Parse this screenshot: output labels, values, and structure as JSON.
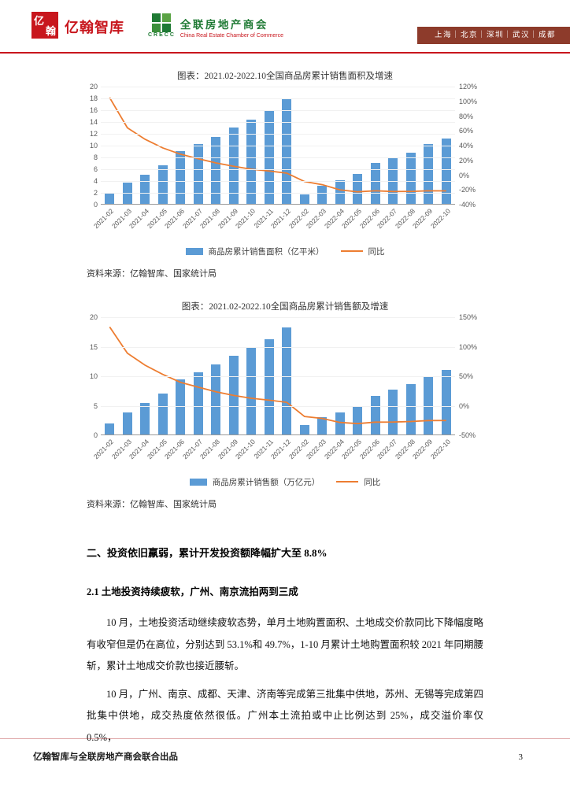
{
  "header": {
    "brand": "亿翰智库",
    "logo_mark_top": "亿",
    "logo_mark_bottom": "翰",
    "crecc_cn": "全联房地产商会",
    "crecc_en": "China Real Estate Chamber of Commerce",
    "crecc_abbr": "CRECC",
    "cities": "上海｜北京｜深圳｜武汉｜成都"
  },
  "chart_data": [
    {
      "type": "bar",
      "title": "图表：2021.02-2022.10全国商品房累计销售面积及增速",
      "categories": [
        "2021-02",
        "2021-03",
        "2021-04",
        "2021-05",
        "2021-06",
        "2021-07",
        "2021-08",
        "2021-09",
        "2021-10",
        "2021-11",
        "2021-12",
        "2022-02",
        "2022-03",
        "2022-04",
        "2022-05",
        "2022-06",
        "2022-07",
        "2022-08",
        "2022-09",
        "2022-10"
      ],
      "series": [
        {
          "name": "商品房累计销售面积（亿平米）",
          "type": "bar",
          "axis": "left",
          "color": "#5b9bd5",
          "values": [
            1.7,
            3.6,
            5.0,
            6.6,
            8.9,
            10.1,
            11.4,
            13.0,
            14.3,
            15.8,
            17.9,
            1.6,
            3.1,
            4.0,
            5.1,
            6.9,
            7.8,
            8.7,
            10.1,
            11.1
          ]
        },
        {
          "name": "同比",
          "type": "line",
          "axis": "right",
          "color": "#ed7d31",
          "values": [
            104.9,
            63.8,
            48.1,
            36.3,
            27.7,
            21.5,
            15.9,
            11.3,
            7.3,
            4.8,
            1.9,
            -9.6,
            -13.8,
            -20.9,
            -23.6,
            -22.2,
            -23.1,
            -23.0,
            -22.2,
            -22.3
          ]
        }
      ],
      "left_axis": {
        "min": 0,
        "max": 20,
        "step": 2
      },
      "right_axis": {
        "min": -40,
        "max": 120,
        "step": 20,
        "suffix": "%"
      },
      "grid": "light-horizontal",
      "legend_position": "bottom",
      "source": "资料来源：亿翰智库、国家统计局"
    },
    {
      "type": "bar",
      "title": "图表：2021.02-2022.10全国商品房累计销售额及增速",
      "categories": [
        "2021-02",
        "2021-03",
        "2021-04",
        "2021-05",
        "2021-06",
        "2021-07",
        "2021-08",
        "2021-09",
        "2021-10",
        "2021-11",
        "2021-12",
        "2022-02",
        "2022-03",
        "2022-04",
        "2022-05",
        "2022-06",
        "2022-07",
        "2022-08",
        "2022-09",
        "2022-10"
      ],
      "series": [
        {
          "name": "商品房累计销售额（万亿元）",
          "type": "bar",
          "axis": "left",
          "color": "#5b9bd5",
          "values": [
            1.9,
            3.8,
            5.4,
            7.0,
            9.3,
            10.6,
            11.9,
            13.4,
            14.7,
            16.2,
            18.2,
            1.6,
            3.0,
            3.7,
            4.8,
            6.6,
            7.6,
            8.6,
            9.9,
            10.9
          ]
        },
        {
          "name": "同比",
          "type": "line",
          "axis": "right",
          "color": "#ed7d31",
          "values": [
            133.4,
            88.5,
            68.2,
            52.4,
            38.9,
            30.7,
            22.8,
            16.6,
            11.8,
            8.5,
            4.8,
            -19.3,
            -22.7,
            -29.5,
            -31.5,
            -28.9,
            -28.8,
            -27.9,
            -26.3,
            -26.1
          ]
        }
      ],
      "left_axis": {
        "min": 0,
        "max": 20,
        "step": 5
      },
      "right_axis": {
        "min": -50,
        "max": 150,
        "step": 50,
        "suffix": "%"
      },
      "grid": "light-horizontal",
      "legend_position": "bottom",
      "source": "资料来源：亿翰智库、国家统计局"
    }
  ],
  "body": {
    "section_heading": "二、投资依旧羸弱，累计开发投资额降幅扩大至 8.8%",
    "sub_heading": "2.1 土地投资持续疲软，广州、南京流拍两到三成",
    "paragraphs": [
      "10 月，土地投资活动继续疲软态势，单月土地购置面积、土地成交价款同比下降幅度略有收窄但是仍在高位，分别达到 53.1%和 49.7%，1-10 月累计土地购置面积较 2021 年同期腰斩，累计土地成交价款也接近腰斩。",
      "10 月，广州、南京、成都、天津、济南等完成第三批集中供地，苏州、无锡等完成第四批集中供地，成交热度依然很低。广州本土流拍或中止比例达到 25%，成交溢价率仅 0.5%，"
    ]
  },
  "footer": {
    "text": "亿翰智库与全联房地产商会联合出品",
    "page_number": "3"
  }
}
